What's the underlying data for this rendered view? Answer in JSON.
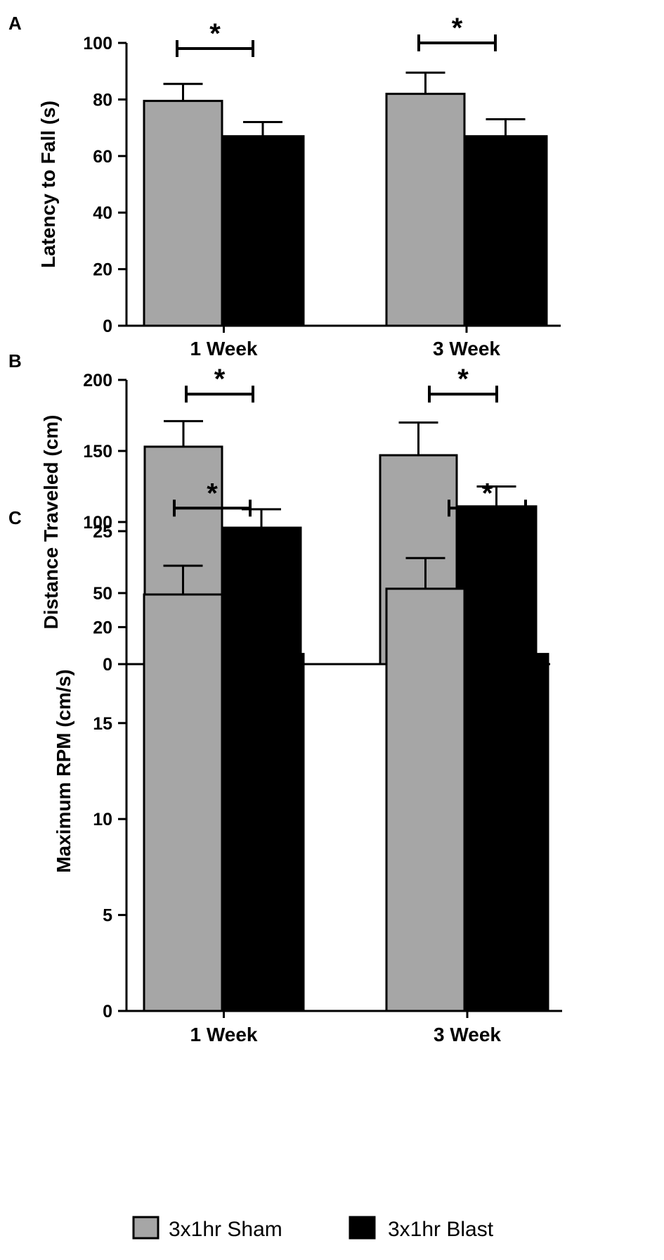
{
  "legend": {
    "items": [
      {
        "label": "3x1hr Sham",
        "color": "#a6a6a6"
      },
      {
        "label": "3x1hr Blast",
        "color": "#000000"
      }
    ]
  },
  "chart_data": [
    {
      "type": "bar",
      "panel": "A",
      "title": "",
      "xlabel": "",
      "ylabel": "Latency to Fall (s)",
      "categories": [
        "1 Week",
        "3 Week"
      ],
      "ylim": [
        0,
        100
      ],
      "yticks": [
        0,
        20,
        40,
        60,
        80,
        100
      ],
      "series": [
        {
          "name": "3x1hr Sham",
          "color": "#a6a6a6",
          "values": [
            79.5,
            82
          ],
          "errors": [
            6,
            7.5
          ]
        },
        {
          "name": "3x1hr Blast",
          "color": "#000000",
          "values": [
            67,
            67
          ],
          "errors": [
            5,
            6
          ]
        }
      ],
      "significance": [
        {
          "category": "1 Week",
          "label": "*",
          "y": 98
        },
        {
          "category": "3 Week",
          "label": "*",
          "y": 100
        }
      ]
    },
    {
      "type": "bar",
      "panel": "B",
      "title": "",
      "xlabel": "",
      "ylabel": "Distance Traveled (cm)",
      "categories": [
        "1 Week",
        "3 Week"
      ],
      "ylim": [
        0,
        200
      ],
      "yticks": [
        0,
        50,
        100,
        150,
        200
      ],
      "series": [
        {
          "name": "3x1hr Sham",
          "color": "#a6a6a6",
          "values": [
            153,
            147
          ],
          "errors": [
            18,
            23
          ]
        },
        {
          "name": "3x1hr Blast",
          "color": "#000000",
          "values": [
            96,
            111
          ],
          "errors": [
            13,
            14
          ]
        }
      ],
      "significance": [
        {
          "category": "1 Week",
          "label": "*",
          "y": 190
        },
        {
          "category": "3 Week",
          "label": "*",
          "y": 190
        }
      ]
    },
    {
      "type": "bar",
      "panel": "C",
      "title": "",
      "xlabel": "",
      "ylabel": "Maximum RPM (cm/s)",
      "categories": [
        "1 Week",
        "3 Week"
      ],
      "ylim": [
        0,
        25
      ],
      "yticks": [
        0,
        5,
        10,
        15,
        20,
        25
      ],
      "series": [
        {
          "name": "3x1hr Sham",
          "color": "#a6a6a6",
          "values": [
            21.7,
            22
          ],
          "errors": [
            1.5,
            1.6
          ]
        },
        {
          "name": "3x1hr Blast",
          "color": "#000000",
          "values": [
            18.6,
            18.6
          ],
          "errors": [
            1.2,
            1.4
          ]
        }
      ],
      "significance": [
        {
          "category": "1 Week",
          "label": "*",
          "y": 26.2
        },
        {
          "category": "3 Week",
          "label": "*",
          "y": 26.2
        }
      ]
    }
  ]
}
